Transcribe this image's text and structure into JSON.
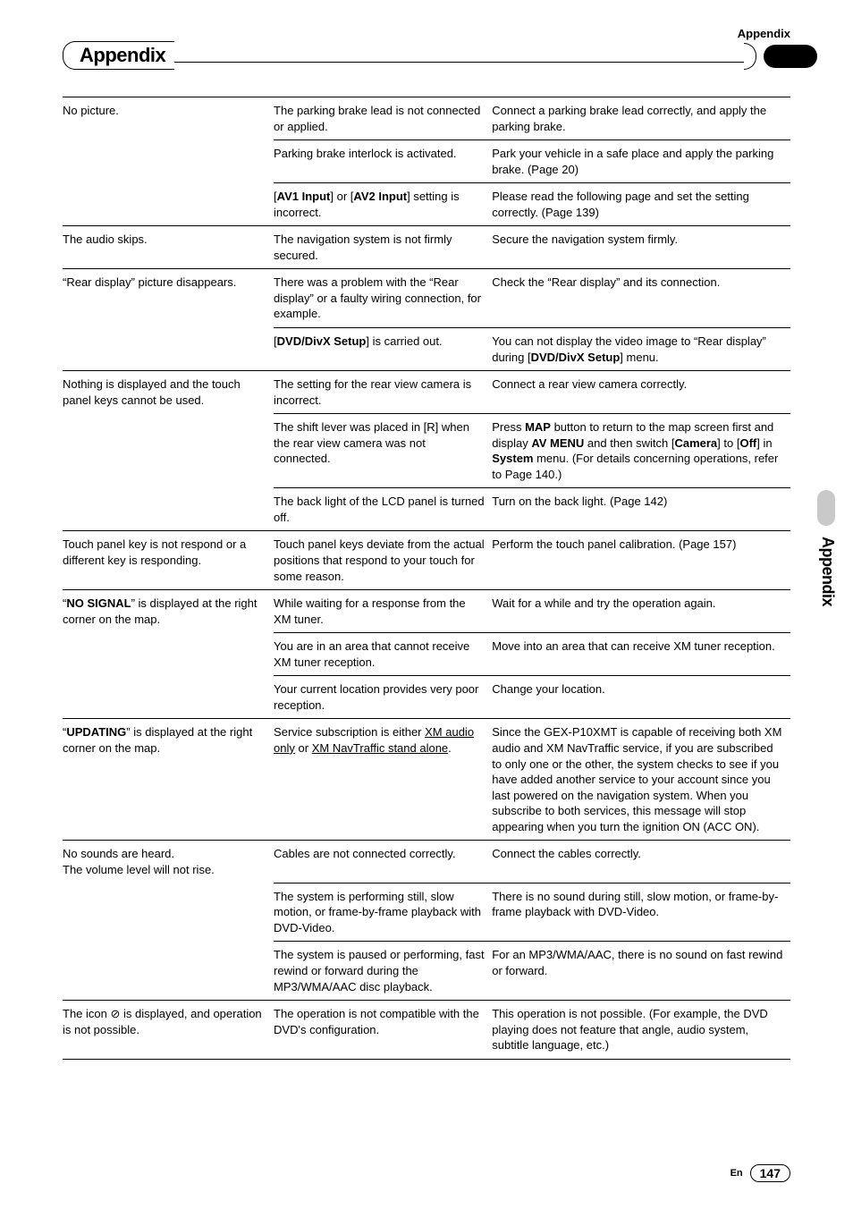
{
  "header": {
    "topLabel": "Appendix",
    "sectionTitle": "Appendix",
    "sideTab": "Appendix"
  },
  "footer": {
    "lang": "En",
    "page": "147"
  },
  "columns": {
    "c1w": "29%",
    "c2w": "30%",
    "c3w": "41%"
  },
  "rows": [
    {
      "sep": "thick",
      "c1": "No picture.",
      "c2": "The parking brake lead is not connected or applied.",
      "c3": "Connect a parking brake lead correctly, and apply the parking brake."
    },
    {
      "sep": "thin",
      "c1": "",
      "c2": "Parking brake interlock is activated.",
      "c3": "Park your vehicle in a safe place and apply the parking brake. (Page 20)"
    },
    {
      "sep": "thin",
      "c1": "",
      "c2html": "[<b>AV1 Input</b>] or [<b>AV2 Input</b>] setting is incorrect.",
      "c3": "Please read the following page and set the setting correctly. (Page 139)"
    },
    {
      "sep": "thin",
      "c1": "The audio skips.",
      "c2": "The navigation system is not firmly secured.",
      "c3": "Secure the navigation system firmly."
    },
    {
      "sep": "thin",
      "c1": "“Rear display” picture disappears.",
      "c2": "There was a problem with the “Rear display” or a faulty wiring connection, for example.",
      "c3": "Check the “Rear display” and its connection."
    },
    {
      "sep": "thin",
      "c1": "",
      "c2html": "[<b>DVD/DivX Setup</b>] is carried out.",
      "c3html": "You can not display the video image to “Rear display” during [<b>DVD/DivX Setup</b>] menu."
    },
    {
      "sep": "thin",
      "c1": "Nothing is displayed and the touch panel keys cannot be used.",
      "c2": "The setting for the rear view camera is incorrect.",
      "c3": "Connect a rear view camera correctly."
    },
    {
      "sep": "thin",
      "c1": "",
      "c2": "The shift lever was placed in [R] when the rear view camera was not connected.",
      "c3html": "Press <b>MAP</b> button to return to the map screen first and display <b>AV MENU</b> and then switch [<b>Camera</b>] to [<b>Off</b>] in <b>System</b> menu. (For details concerning operations, refer to Page 140.)"
    },
    {
      "sep": "thin",
      "c1": "",
      "c2": "The back light of the LCD panel is turned off.",
      "c3": "Turn on the back light. (Page 142)"
    },
    {
      "sep": "thin",
      "c1": "Touch panel key is not respond or a different key is responding.",
      "c2": "Touch panel keys deviate from the actual positions that respond to your touch for some reason.",
      "c3": "Perform the touch panel calibration. (Page 157)"
    },
    {
      "sep": "thin",
      "c1html": "“<b>NO SIGNAL</b>” is displayed at the right corner on the map.",
      "c2": "While waiting for a response from the XM tuner.",
      "c3": "Wait for a while and try the operation again."
    },
    {
      "sep": "thin",
      "c1": "",
      "c2": "You are in an area that cannot receive XM tuner reception.",
      "c3": "Move into an area that can receive XM tuner reception."
    },
    {
      "sep": "thin",
      "c1": "",
      "c2": "Your current location provides very poor reception.",
      "c3": "Change your location."
    },
    {
      "sep": "thin",
      "c1html": "“<b>UPDATING</b>” is displayed at the right corner on the map.",
      "c2html": "Service subscription is either <span class=\"u\">XM audio only</span> or <span class=\"u\">XM NavTraffic stand alone</span>.",
      "c3": "Since the GEX-P10XMT is capable of receiving both XM audio and XM NavTraffic service, if you are subscribed to only one or the other, the system checks to see if you have added another service to your account since you last powered on the navigation system. When you subscribe to both services, this message will stop appearing when you turn the ignition ON (ACC ON)."
    },
    {
      "sep": "thin",
      "c1": "No sounds are heard.\nThe volume level will not rise.",
      "c2": "Cables are not connected correctly.",
      "c3": "Connect the cables correctly."
    },
    {
      "sep": "thin",
      "c1": "",
      "c2": "The system is performing still, slow motion, or frame-by-frame playback with DVD-Video.",
      "c3": "There is no sound during still, slow motion, or frame-by-frame playback with DVD-Video."
    },
    {
      "sep": "thin",
      "c1": "",
      "c2": "The system is paused or performing, fast rewind or forward during the MP3/WMA/AAC disc playback.",
      "c3": "For an MP3/WMA/AAC, there is no sound on fast rewind or forward."
    },
    {
      "sep": "thin",
      "c1html": "The icon <span class=\"circleslash\">⊘</span> is displayed, and operation is not possible.",
      "c2": "The operation is not compatible with the DVD's configuration.",
      "c3": "This operation is not possible. (For example, the DVD playing does not feature that angle, audio system, subtitle language, etc.)"
    },
    {
      "sep": "thin",
      "c1": "",
      "c2": "",
      "c3": ""
    }
  ]
}
